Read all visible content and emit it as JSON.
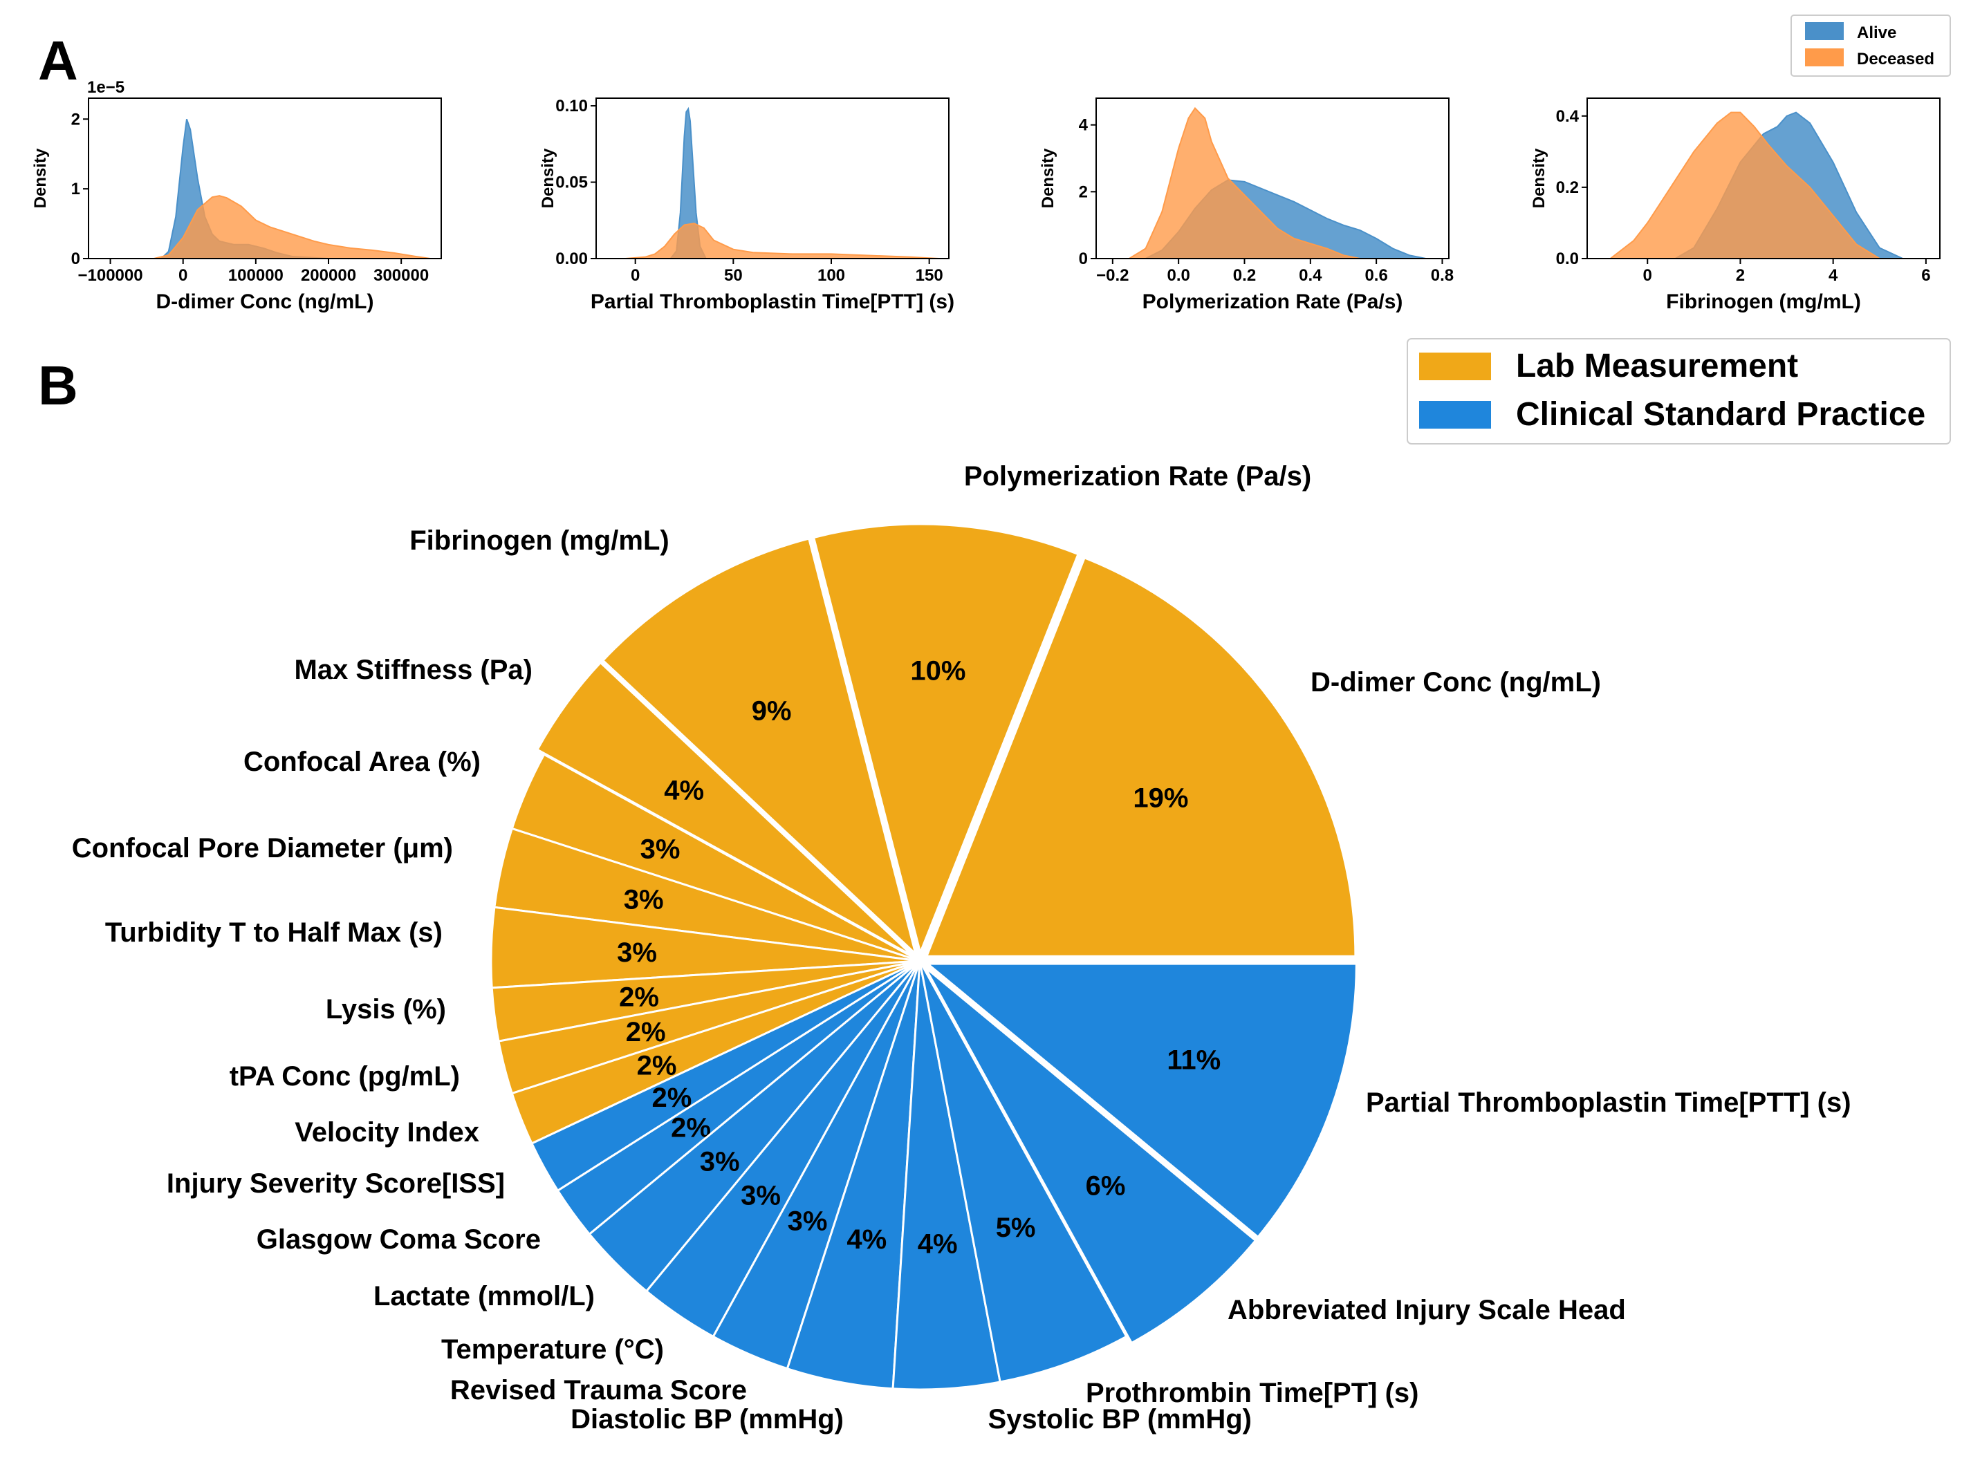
{
  "colors": {
    "alive": "#4a90c9",
    "deceased": "#ff9b4a",
    "lab": "#f0a818",
    "clinical": "#1f86dc"
  },
  "panel_a": {
    "letter": "A",
    "legend": [
      "Alive",
      "Deceased"
    ]
  },
  "panel_b": {
    "letter": "B",
    "legend": [
      "Lab Measurement",
      "Clinical Standard Practice"
    ]
  },
  "chart_data": [
    {
      "type": "area",
      "xlabel": "D-dimer Conc (ng/mL)",
      "ylabel": "Density",
      "multiplier": "1e−5",
      "xlim": [
        -130000,
        355000
      ],
      "ylim": [
        0,
        2.3
      ],
      "xticks": [
        -100000,
        0,
        100000,
        200000,
        300000
      ],
      "xtick_labels": [
        "−100000",
        "0",
        "100000",
        "200000",
        "300000"
      ],
      "yticks": [
        0,
        1,
        2
      ],
      "ytick_labels": [
        "0",
        "1",
        "2"
      ],
      "series": [
        {
          "name": "Alive",
          "x": [
            -30000,
            -20000,
            -10000,
            0,
            5000,
            10000,
            20000,
            30000,
            40000,
            50000,
            70000,
            90000,
            110000,
            130000,
            150000,
            200000
          ],
          "y": [
            0,
            0.1,
            0.6,
            1.6,
            2.0,
            1.85,
            1.15,
            0.6,
            0.35,
            0.25,
            0.2,
            0.2,
            0.15,
            0.08,
            0.03,
            0
          ]
        },
        {
          "name": "Deceased",
          "x": [
            -40000,
            -20000,
            0,
            20000,
            40000,
            50000,
            60000,
            80000,
            100000,
            120000,
            150000,
            180000,
            200000,
            230000,
            260000,
            290000,
            320000,
            340000
          ],
          "y": [
            0,
            0.05,
            0.3,
            0.7,
            0.88,
            0.9,
            0.87,
            0.75,
            0.55,
            0.45,
            0.35,
            0.25,
            0.2,
            0.15,
            0.12,
            0.08,
            0.03,
            0
          ]
        }
      ]
    },
    {
      "type": "area",
      "xlabel": "Partial Thromboplastin Time[PTT] (s)",
      "ylabel": "Density",
      "multiplier": "",
      "xlim": [
        -20,
        160
      ],
      "ylim": [
        0,
        0.105
      ],
      "xticks": [
        0,
        50,
        100,
        150
      ],
      "xtick_labels": [
        "0",
        "50",
        "100",
        "150"
      ],
      "yticks": [
        0,
        0.05,
        0.1
      ],
      "ytick_labels": [
        "0.00",
        "0.05",
        "0.10"
      ],
      "series": [
        {
          "name": "Alive",
          "x": [
            18,
            21,
            23,
            25,
            26,
            27,
            28,
            29,
            31,
            33,
            36
          ],
          "y": [
            0,
            0.005,
            0.03,
            0.08,
            0.096,
            0.098,
            0.09,
            0.07,
            0.03,
            0.008,
            0
          ]
        },
        {
          "name": "Deceased",
          "x": [
            -5,
            5,
            10,
            15,
            20,
            25,
            30,
            35,
            40,
            50,
            60,
            80,
            100,
            120,
            140,
            155
          ],
          "y": [
            0,
            0.001,
            0.003,
            0.008,
            0.016,
            0.022,
            0.023,
            0.02,
            0.012,
            0.006,
            0.004,
            0.003,
            0.003,
            0.002,
            0.001,
            0
          ]
        }
      ]
    },
    {
      "type": "area",
      "xlabel": "Polymerization Rate (Pa/s)",
      "ylabel": "Density",
      "multiplier": "",
      "xlim": [
        -0.25,
        0.82
      ],
      "ylim": [
        0,
        4.8
      ],
      "xticks": [
        -0.2,
        0,
        0.2,
        0.4,
        0.6,
        0.8
      ],
      "xtick_labels": [
        "−0.2",
        "0.0",
        "0.2",
        "0.4",
        "0.6",
        "0.8"
      ],
      "yticks": [
        0,
        2,
        4
      ],
      "ytick_labels": [
        "0",
        "2",
        "4"
      ],
      "series": [
        {
          "name": "Alive",
          "x": [
            -0.1,
            -0.05,
            0,
            0.05,
            0.1,
            0.15,
            0.2,
            0.25,
            0.3,
            0.35,
            0.4,
            0.45,
            0.5,
            0.55,
            0.6,
            0.65,
            0.7,
            0.75
          ],
          "y": [
            0,
            0.25,
            0.8,
            1.5,
            2.05,
            2.35,
            2.3,
            2.1,
            1.9,
            1.7,
            1.45,
            1.2,
            1.0,
            0.85,
            0.6,
            0.3,
            0.1,
            0
          ]
        },
        {
          "name": "Deceased",
          "x": [
            -0.15,
            -0.1,
            -0.05,
            0,
            0.03,
            0.05,
            0.08,
            0.1,
            0.15,
            0.2,
            0.25,
            0.3,
            0.35,
            0.4,
            0.45,
            0.5,
            0.55
          ],
          "y": [
            0,
            0.3,
            1.4,
            3.3,
            4.2,
            4.5,
            4.2,
            3.5,
            2.4,
            1.9,
            1.4,
            0.9,
            0.6,
            0.45,
            0.3,
            0.1,
            0
          ]
        }
      ]
    },
    {
      "type": "area",
      "xlabel": "Fibrinogen (mg/mL)",
      "ylabel": "Density",
      "multiplier": "",
      "xlim": [
        -1.3,
        6.3
      ],
      "ylim": [
        0,
        0.45
      ],
      "xticks": [
        0,
        2,
        4,
        6
      ],
      "xtick_labels": [
        "0",
        "2",
        "4",
        "6"
      ],
      "yticks": [
        0,
        0.2,
        0.4
      ],
      "ytick_labels": [
        "0.0",
        "0.2",
        "0.4"
      ],
      "series": [
        {
          "name": "Alive",
          "x": [
            0.6,
            1.0,
            1.5,
            2.0,
            2.5,
            2.8,
            3.0,
            3.2,
            3.5,
            4.0,
            4.5,
            5.0,
            5.5
          ],
          "y": [
            0,
            0.03,
            0.14,
            0.27,
            0.35,
            0.37,
            0.4,
            0.41,
            0.38,
            0.27,
            0.13,
            0.03,
            0
          ]
        },
        {
          "name": "Deceased",
          "x": [
            -0.8,
            -0.3,
            0,
            0.5,
            1.0,
            1.5,
            1.8,
            2.0,
            2.3,
            2.6,
            3.0,
            3.5,
            4.0,
            4.5,
            5.0
          ],
          "y": [
            0,
            0.05,
            0.1,
            0.2,
            0.3,
            0.38,
            0.41,
            0.41,
            0.37,
            0.32,
            0.26,
            0.2,
            0.12,
            0.04,
            0
          ]
        }
      ]
    },
    {
      "type": "pie",
      "slices": [
        {
          "label": "D-dimer Conc (ng/mL)",
          "value": 19,
          "pct": "19%",
          "group": "lab",
          "explode": true
        },
        {
          "label": "Polymerization Rate (Pa/s)",
          "value": 10,
          "pct": "10%",
          "group": "lab",
          "explode": true
        },
        {
          "label": "Fibrinogen (mg/mL)",
          "value": 9,
          "pct": "9%",
          "group": "lab",
          "explode": true
        },
        {
          "label": "Max Stiffness (Pa)",
          "value": 4,
          "pct": "4%",
          "group": "lab",
          "explode": true
        },
        {
          "label": "Confocal Area (%)",
          "value": 3,
          "pct": "3%",
          "group": "lab"
        },
        {
          "label": "Confocal Pore Diameter (μm)",
          "value": 3,
          "pct": "3%",
          "group": "lab"
        },
        {
          "label": "Turbidity T to Half Max (s)",
          "value": 3,
          "pct": "3%",
          "group": "lab"
        },
        {
          "label": "Lysis (%)",
          "value": 2,
          "pct": "2%",
          "group": "lab"
        },
        {
          "label": "tPA Conc (pg/mL)",
          "value": 2,
          "pct": "2%",
          "group": "lab"
        },
        {
          "label": "Velocity Index",
          "value": 2,
          "pct": "2%",
          "group": "lab"
        },
        {
          "label": "Injury Severity Score[ISS]",
          "value": 2,
          "pct": "2%",
          "group": "clinical"
        },
        {
          "label": "Glasgow Coma Score",
          "value": 2,
          "pct": "2%",
          "group": "clinical"
        },
        {
          "label": "Lactate (mmol/L)",
          "value": 3,
          "pct": "3%",
          "group": "clinical"
        },
        {
          "label": "Temperature (°C)",
          "value": 3,
          "pct": "3%",
          "group": "clinical"
        },
        {
          "label": "Revised Trauma Score",
          "value": 3,
          "pct": "3%",
          "group": "clinical"
        },
        {
          "label": "Diastolic BP (mmHg)",
          "value": 4,
          "pct": "4%",
          "group": "clinical"
        },
        {
          "label": "Systolic BP (mmHg)",
          "value": 4,
          "pct": "4%",
          "group": "clinical"
        },
        {
          "label": "Prothrombin Time[PT] (s)",
          "value": 5,
          "pct": "5%",
          "group": "clinical"
        },
        {
          "label": "Abbreviated Injury Scale Head",
          "value": 6,
          "pct": "6%",
          "group": "clinical",
          "explode": true
        },
        {
          "label": "Partial Thromboplastin Time[PTT] (s)",
          "value": 11,
          "pct": "11%",
          "group": "clinical",
          "explode": true
        }
      ]
    }
  ]
}
